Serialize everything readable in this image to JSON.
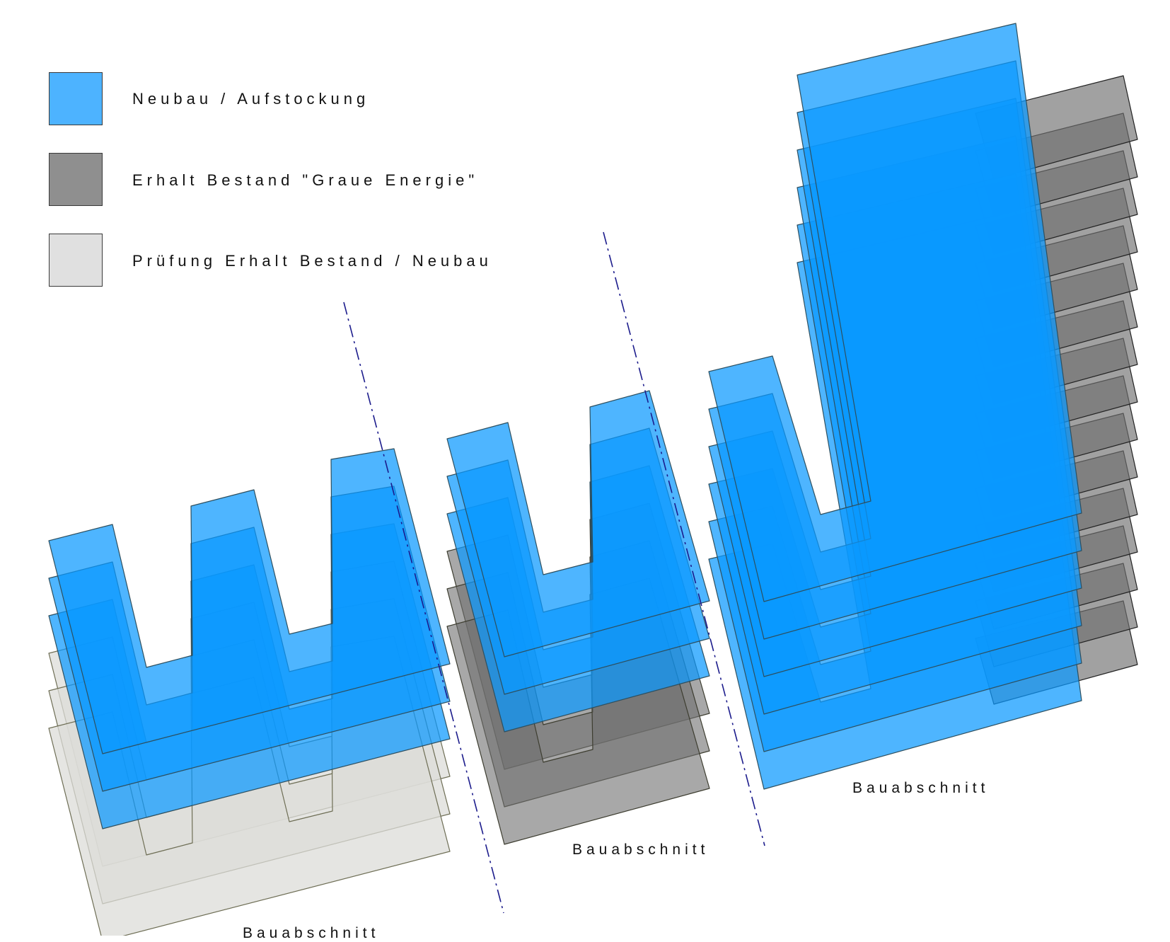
{
  "legend": {
    "items": [
      {
        "label": "Neubau / Aufstockung",
        "color": "#4db3ff"
      },
      {
        "label": "Erhalt Bestand \"Graue Energie\"",
        "color": "#8f8f8f"
      },
      {
        "label": "Prüfung Erhalt Bestand / Neubau",
        "color": "#e0e0e0"
      }
    ]
  },
  "phases": [
    {
      "label": "Bauabschnitt"
    },
    {
      "label": "Bauabschnitt"
    },
    {
      "label": "Bauabschnitt"
    }
  ],
  "colors": {
    "new_build": "#0a99ff",
    "existing": "#6e6e6e",
    "review": "#dcdcd8",
    "divider": "#1c1c8c"
  }
}
